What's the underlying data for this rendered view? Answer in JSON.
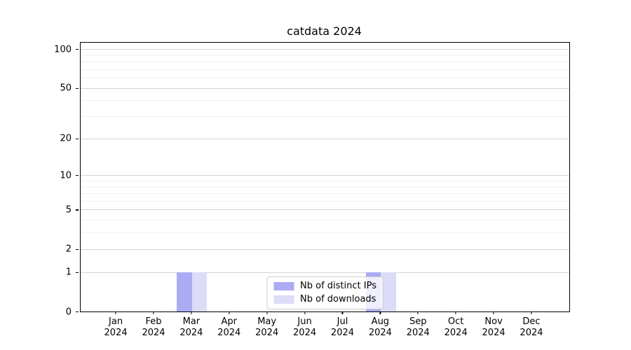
{
  "figure": {
    "title": "catdata 2024"
  },
  "chart_data": {
    "type": "bar",
    "title": "catdata 2024",
    "categories": [
      "Jan",
      "Feb",
      "Mar",
      "Apr",
      "May",
      "Jun",
      "Jul",
      "Aug",
      "Sep",
      "Oct",
      "Nov",
      "Dec"
    ],
    "year_label": "2024",
    "series": [
      {
        "name": "Nb of distinct IPs",
        "color": "#ababf4",
        "values": [
          0,
          0,
          1,
          0,
          0,
          0,
          0,
          1,
          0,
          0,
          0,
          0
        ]
      },
      {
        "name": "Nb of downloads",
        "color": "#dcdcf8",
        "values": [
          0,
          0,
          1,
          0,
          0,
          0,
          0,
          1,
          0,
          0,
          0,
          0
        ]
      }
    ],
    "xlabel": "",
    "ylabel": "",
    "yscale": "log1p",
    "ylim": [
      0,
      112
    ],
    "yticks": [
      0,
      1,
      2,
      5,
      10,
      20,
      50,
      100
    ],
    "minor_yticks": [
      3,
      4,
      6,
      7,
      8,
      9,
      30,
      40,
      60,
      70,
      80,
      90
    ],
    "grid": true,
    "legend_position": "lower center",
    "colors": {
      "grid_major": "#d4d4d4",
      "grid_minor": "#f0f0f0",
      "axis": "#000000",
      "background": "#ffffff"
    }
  }
}
